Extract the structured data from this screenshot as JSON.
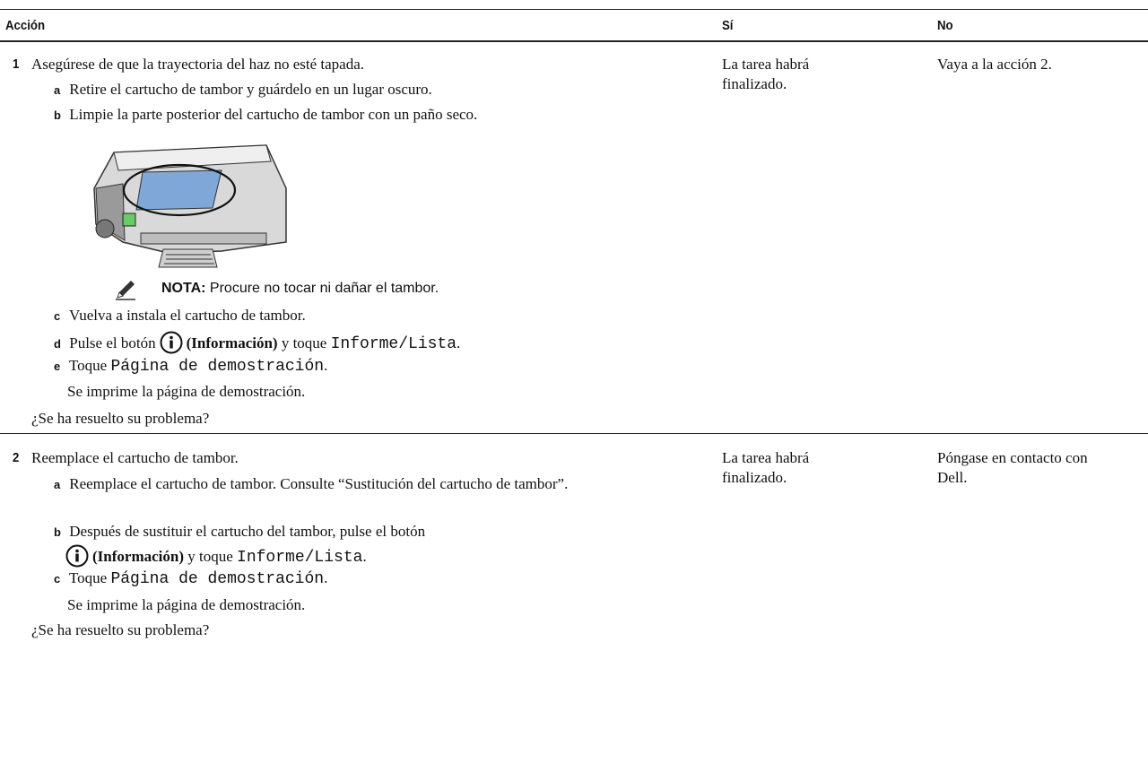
{
  "table": {
    "header": [
      "Acción",
      "Sí",
      "No"
    ],
    "rows": [
      {
        "number": "1",
        "intro": "Asegúrese de que la trayectoria del haz no esté tapada.",
        "steps": [
          {
            "letter": "a",
            "text": "Retire el cartucho de tambor y guárdelo en un lugar oscuro."
          },
          {
            "letter": "b",
            "text": "Limpie la parte posterior del cartucho de tambor con un paño seco."
          },
          {
            "letter": "c",
            "text": "Vuelva a instala el cartucho de tambor."
          },
          {
            "letter": "d",
            "text": "Pulse el botón",
            "button": "(Información)",
            "text2": "y toque",
            "code": "Informe/Lista",
            "end": "."
          },
          {
            "letter": "e",
            "text": "Toque",
            "code": "Página de demostración",
            "end": "."
          }
        ],
        "note": {
          "label": "NOTA:",
          "text": "Procure no tocar ni dañar el tambor."
        },
        "result": "Se imprime la página de demostración.",
        "question": "¿Se ha resuelto su problema?",
        "yes": "La tarea habrá finalizado.",
        "no": "Vaya a la acción 2."
      },
      {
        "number": "2",
        "intro": "Reemplace el cartucho de tambor.",
        "steps": [
          {
            "letter": "a",
            "text": "Reemplace el cartucho de tambor. Consulte “Sustitución del cartucho de tambor”."
          },
          {
            "letter": "b",
            "text": "Después de sustituir el cartucho del tambor, pulse el botón",
            "button": "(Información)",
            "text2": "y toque",
            "code": "Informe/Lista",
            "end": "."
          },
          {
            "letter": "c",
            "text": "Toque",
            "code": "Página de demostración",
            "end": "."
          }
        ],
        "result": "Se imprime la página de demostración.",
        "question": "¿Se ha resuelto su problema?",
        "yes": "La tarea habrá finalizado.",
        "no": "Póngase en contacto con Dell."
      }
    ]
  }
}
